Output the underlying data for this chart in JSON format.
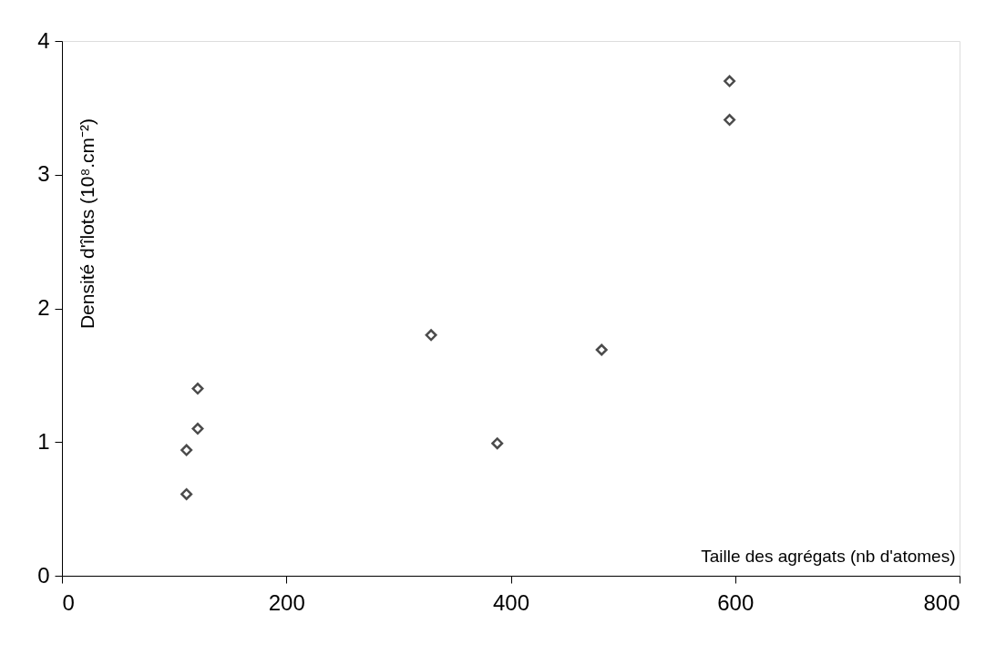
{
  "chart_data": {
    "type": "scatter",
    "xlabel": "Taille des agrégats (nb d'atomes)",
    "ylabel": "Densité d'îlots (10⁸.cm⁻²)",
    "x": [
      111,
      111,
      121,
      121,
      329,
      388,
      481,
      595,
      595
    ],
    "series": [
      {
        "color": "#000000",
        "values": [
          0.61,
          0.94,
          1.1,
          1.4,
          1.8,
          0.99,
          1.69,
          3.41,
          3.7
        ]
      }
    ],
    "xlim": [
      0,
      800
    ],
    "xticks": [
      0,
      200,
      400,
      600,
      800
    ],
    "ylim": [
      0,
      4
    ],
    "yticks": [
      0,
      1,
      2,
      3,
      4
    ],
    "grid": false,
    "legend": false,
    "marker": "diamond"
  }
}
